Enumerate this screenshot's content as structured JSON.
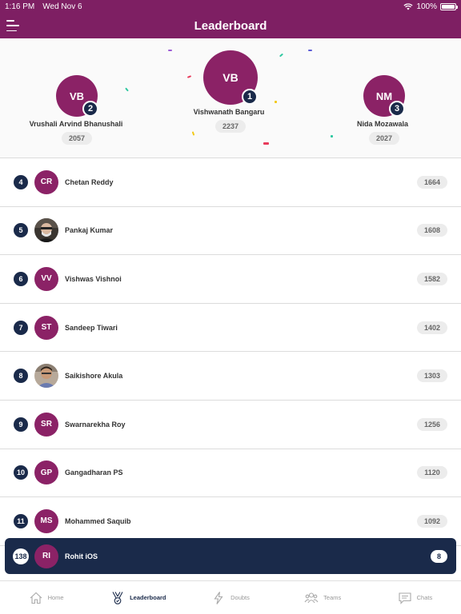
{
  "status_bar": {
    "time": "1:16 PM",
    "date": "Wed Nov 6",
    "battery": "100%"
  },
  "header": {
    "title": "Leaderboard"
  },
  "podium": [
    {
      "rank": "2",
      "initials": "VB",
      "name": "Vrushali Arvind Bhanushali",
      "score": "2057"
    },
    {
      "rank": "1",
      "initials": "VB",
      "name": "Vishwanath Bangaru",
      "score": "2237"
    },
    {
      "rank": "3",
      "initials": "NM",
      "name": "Nida Mozawala",
      "score": "2027"
    }
  ],
  "rows": [
    {
      "rank": "4",
      "initials": "CR",
      "name": "Chetan Reddy",
      "score": "1664"
    },
    {
      "rank": "5",
      "initials": "",
      "name": "Pankaj Kumar",
      "score": "1608"
    },
    {
      "rank": "6",
      "initials": "VV",
      "name": "Vishwas Vishnoi",
      "score": "1582"
    },
    {
      "rank": "7",
      "initials": "ST",
      "name": "Sandeep Tiwari",
      "score": "1402"
    },
    {
      "rank": "8",
      "initials": "",
      "name": "Saikishore Akula",
      "score": "1303"
    },
    {
      "rank": "9",
      "initials": "SR",
      "name": "Swarnarekha Roy",
      "score": "1256"
    },
    {
      "rank": "10",
      "initials": "GP",
      "name": "Gangadharan PS",
      "score": "1120"
    },
    {
      "rank": "11",
      "initials": "MS",
      "name": "Mohammed Saquib",
      "score": "1092"
    }
  ],
  "current_user": {
    "rank": "138",
    "initials": "RI",
    "name": "Rohit iOS",
    "score": "8"
  },
  "tabs": [
    {
      "label": "Home",
      "icon": "home-icon"
    },
    {
      "label": "Leaderboard",
      "icon": "trophy-icon"
    },
    {
      "label": "Doubts",
      "icon": "bolt-icon"
    },
    {
      "label": "Teams",
      "icon": "people-icon"
    },
    {
      "label": "Chats",
      "icon": "chat-icon"
    }
  ],
  "colors": {
    "brand": "#7e1f63",
    "avatar": "#8b2266",
    "navy": "#1a2a4a"
  }
}
